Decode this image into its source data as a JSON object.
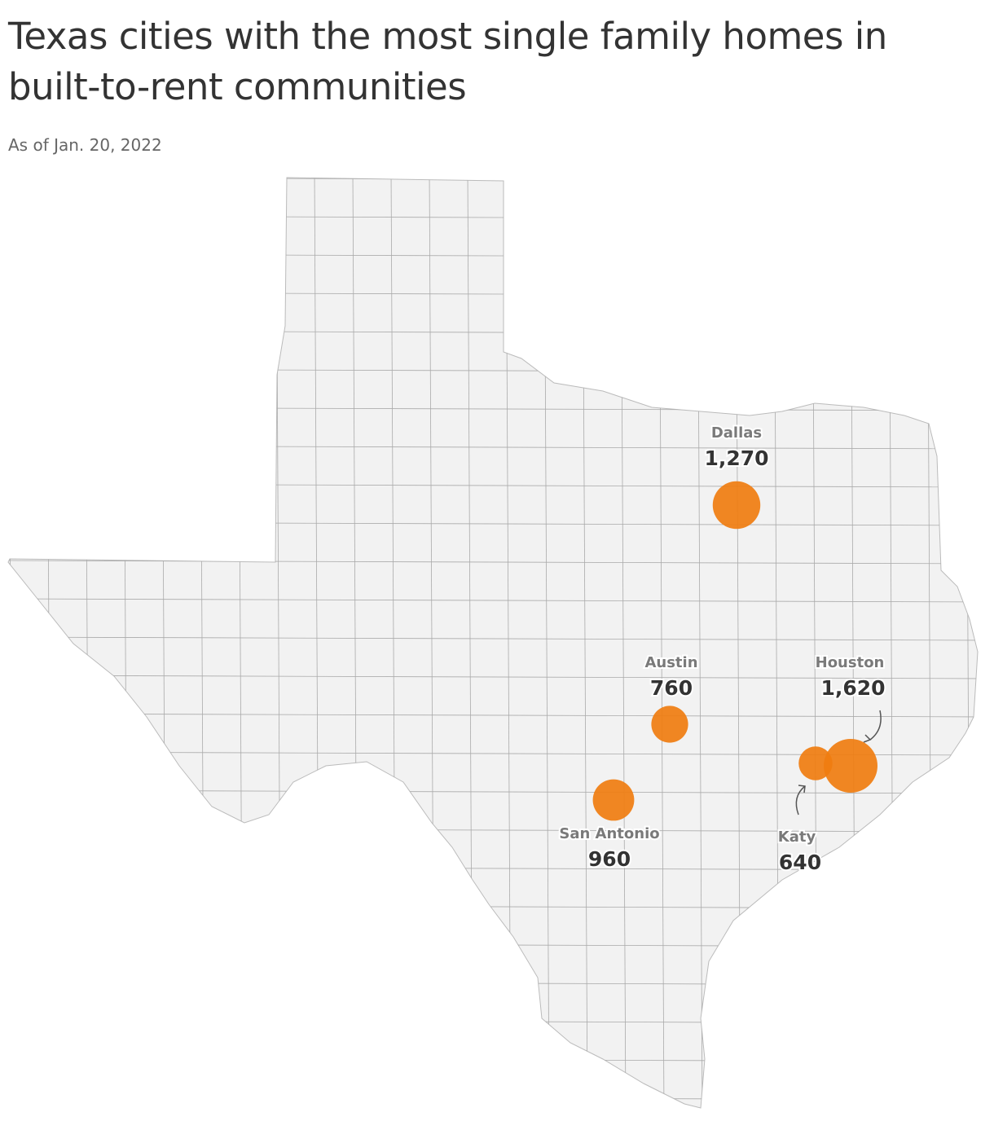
{
  "chart_data": {
    "type": "bubble_map",
    "title": "Texas cities with the most single family homes in built-to-rent communities",
    "subtitle": "As of Jan. 20, 2022",
    "categories": [
      "Dallas",
      "Austin",
      "Houston",
      "San Antonio",
      "Katy"
    ],
    "values": [
      1270,
      760,
      1620,
      960,
      640
    ],
    "value_labels": [
      "1,270",
      "760",
      "1,620",
      "960",
      "640"
    ],
    "color": "#f07d10"
  }
}
